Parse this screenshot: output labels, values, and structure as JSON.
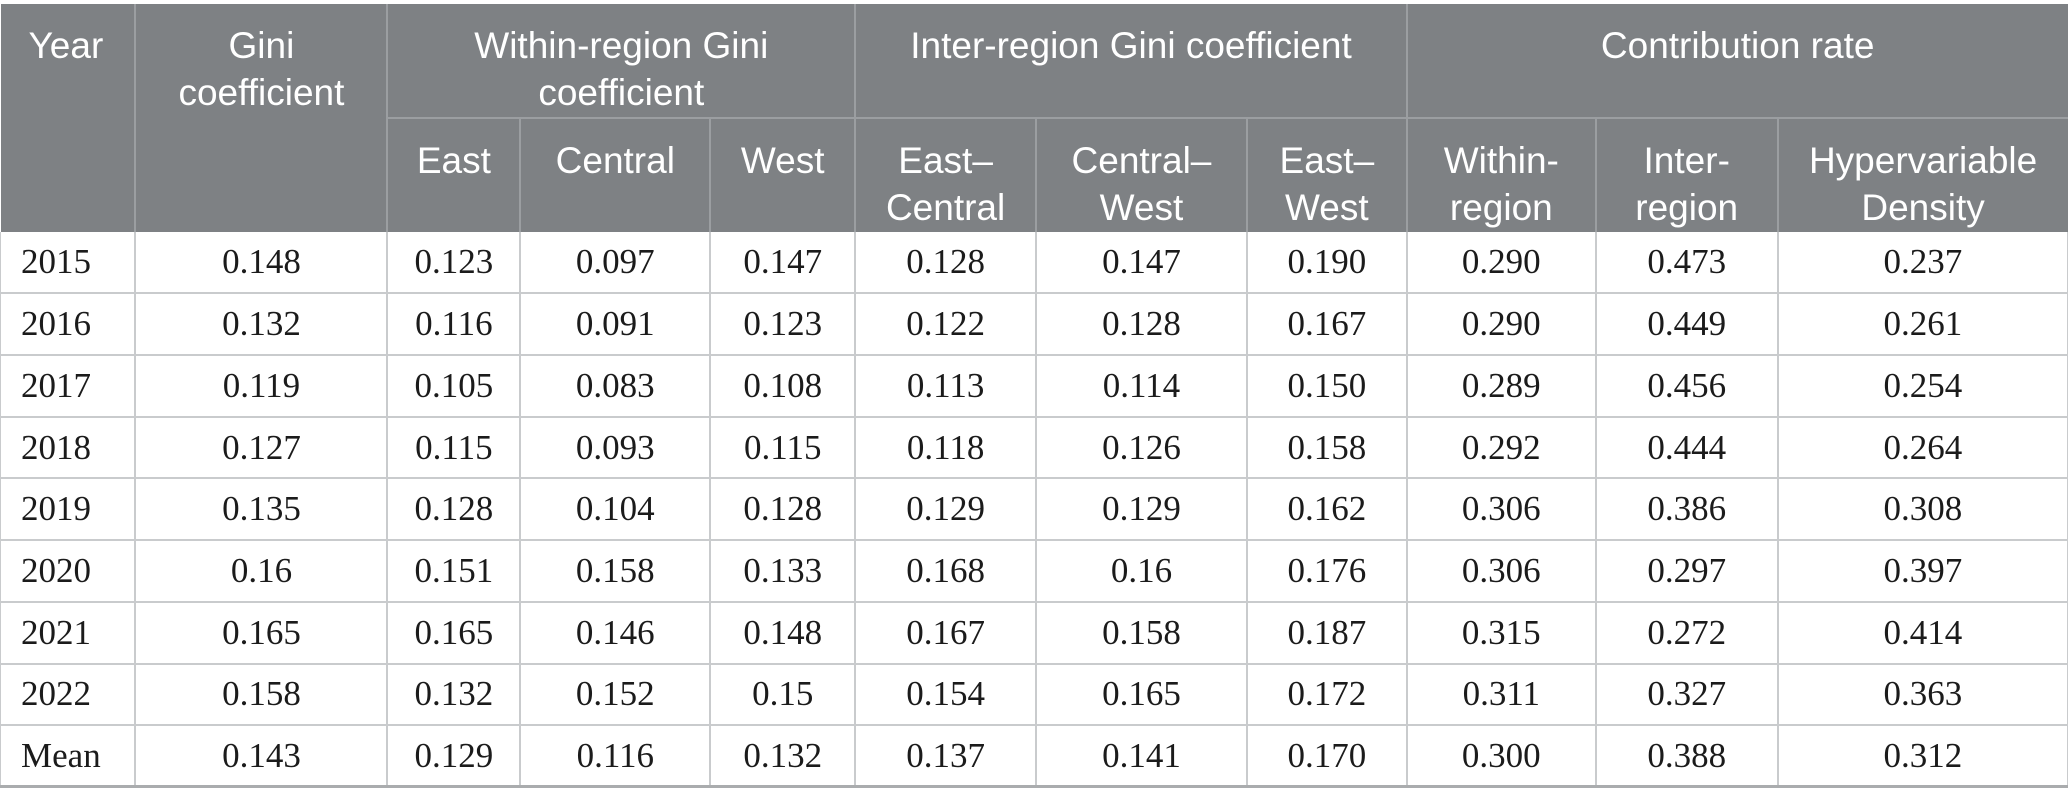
{
  "table": {
    "header": {
      "year_label": "Year",
      "gini_label": "Gini\ncoefficient",
      "groups": [
        {
          "label": "Within-region Gini\ncoefficient",
          "children": [
            "East",
            "Central",
            "West"
          ]
        },
        {
          "label": "Inter-region Gini coefficient",
          "children": [
            "East–\nCentral",
            "Central–\nWest",
            "East–\nWest"
          ]
        },
        {
          "label": "Contribution rate",
          "children": [
            "Within-\nregion",
            "Inter-\nregion",
            "Hypervariable\nDensity"
          ]
        }
      ]
    },
    "rows": [
      [
        "2015",
        "0.148",
        "0.123",
        "0.097",
        "0.147",
        "0.128",
        "0.147",
        "0.190",
        "0.290",
        "0.473",
        "0.237"
      ],
      [
        "2016",
        "0.132",
        "0.116",
        "0.091",
        "0.123",
        "0.122",
        "0.128",
        "0.167",
        "0.290",
        "0.449",
        "0.261"
      ],
      [
        "2017",
        "0.119",
        "0.105",
        "0.083",
        "0.108",
        "0.113",
        "0.114",
        "0.150",
        "0.289",
        "0.456",
        "0.254"
      ],
      [
        "2018",
        "0.127",
        "0.115",
        "0.093",
        "0.115",
        "0.118",
        "0.126",
        "0.158",
        "0.292",
        "0.444",
        "0.264"
      ],
      [
        "2019",
        "0.135",
        "0.128",
        "0.104",
        "0.128",
        "0.129",
        "0.129",
        "0.162",
        "0.306",
        "0.386",
        "0.308"
      ],
      [
        "2020",
        "0.16",
        "0.151",
        "0.158",
        "0.133",
        "0.168",
        "0.16",
        "0.176",
        "0.306",
        "0.297",
        "0.397"
      ],
      [
        "2021",
        "0.165",
        "0.165",
        "0.146",
        "0.148",
        "0.167",
        "0.158",
        "0.187",
        "0.315",
        "0.272",
        "0.414"
      ],
      [
        "2022",
        "0.158",
        "0.132",
        "0.152",
        "0.15",
        "0.154",
        "0.165",
        "0.172",
        "0.311",
        "0.327",
        "0.363"
      ],
      [
        "Mean",
        "0.143",
        "0.129",
        "0.116",
        "0.132",
        "0.137",
        "0.141",
        "0.170",
        "0.300",
        "0.388",
        "0.312"
      ]
    ]
  },
  "colors": {
    "header_bg": "#7e8184",
    "header_text": "#ffffff",
    "header_divider": "#9b9ea1",
    "body_border": "#c9cbcd",
    "body_text": "#1b1b1b",
    "bottom_rule": "#aaacae"
  }
}
